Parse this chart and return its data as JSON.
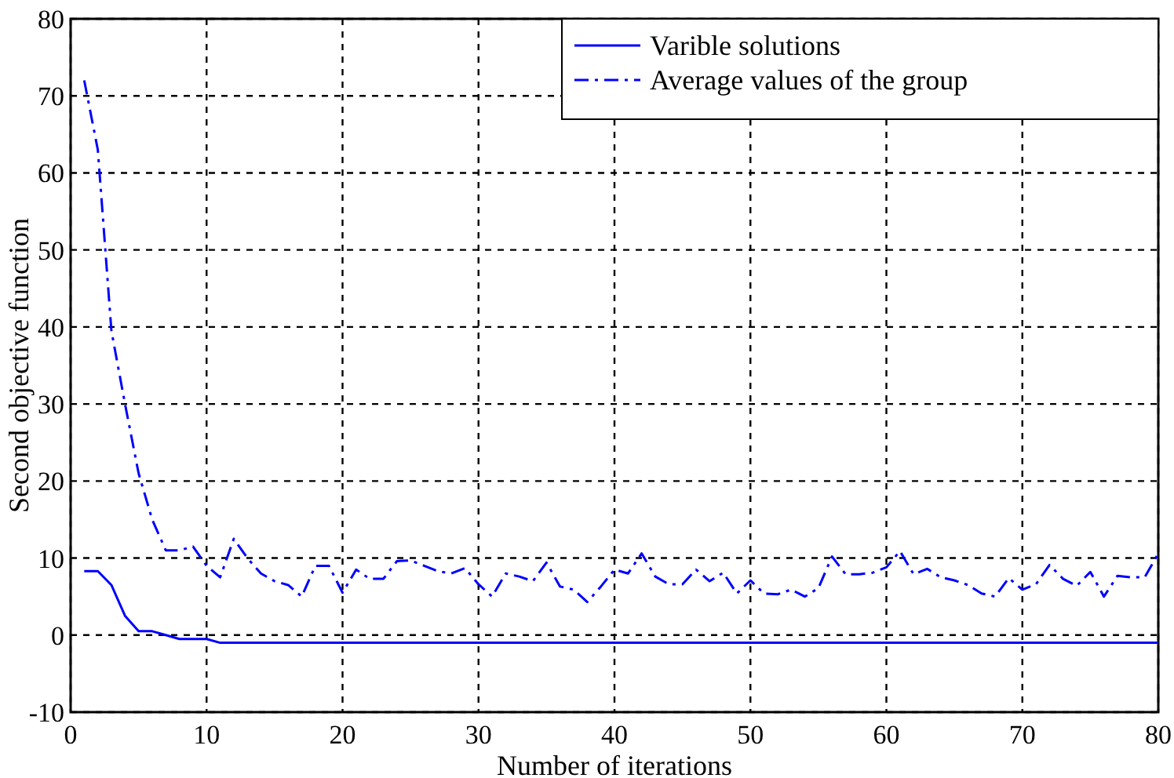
{
  "chart_data": {
    "type": "line",
    "xlabel": "Number of iterations",
    "ylabel": "Second objective function",
    "x": [
      1,
      2,
      3,
      4,
      5,
      6,
      7,
      8,
      9,
      10,
      11,
      12,
      13,
      14,
      15,
      16,
      17,
      18,
      19,
      20,
      21,
      22,
      23,
      24,
      25,
      26,
      27,
      28,
      29,
      30,
      31,
      32,
      33,
      34,
      35,
      36,
      37,
      38,
      39,
      40,
      41,
      42,
      43,
      44,
      45,
      46,
      47,
      48,
      49,
      50,
      51,
      52,
      53,
      54,
      55,
      56,
      57,
      58,
      59,
      60,
      61,
      62,
      63,
      64,
      65,
      66,
      67,
      68,
      69,
      70,
      71,
      72,
      73,
      74,
      75,
      76,
      77,
      78,
      79,
      80
    ],
    "series": [
      {
        "name": "Varible solutions",
        "color": "#0000ff",
        "line_style": "solid",
        "values": [
          8.3,
          8.3,
          6.5,
          2.5,
          0.5,
          0.5,
          0,
          -0.5,
          -0.5,
          -0.5,
          -1,
          -1,
          -1,
          -1,
          -1,
          -1,
          -1,
          -1,
          -1,
          -1,
          -1,
          -1,
          -1,
          -1,
          -1,
          -1,
          -1,
          -1,
          -1,
          -1,
          -1,
          -1,
          -1,
          -1,
          -1,
          -1,
          -1,
          -1,
          -1,
          -1,
          -1,
          -1,
          -1,
          -1,
          -1,
          -1,
          -1,
          -1,
          -1,
          -1,
          -1,
          -1,
          -1,
          -1,
          -1,
          -1,
          -1,
          -1,
          -1,
          -1,
          -1,
          -1,
          -1,
          -1,
          -1,
          -1,
          -1,
          -1,
          -1,
          -1,
          -1,
          -1,
          -1,
          -1,
          -1,
          -1,
          -1,
          -1,
          -1,
          -1
        ]
      },
      {
        "name": "Average values of the group",
        "color": "#0000ff",
        "line_style": "dashed",
        "values": [
          72,
          63,
          39.5,
          30,
          21,
          15,
          11,
          11,
          11.5,
          9,
          7.5,
          12.5,
          10,
          8,
          7,
          6.5,
          5,
          9,
          9,
          5.5,
          8.5,
          7.3,
          7.3,
          9.6,
          9.7,
          9,
          8.3,
          8,
          8.7,
          6.6,
          5,
          8,
          7.6,
          7,
          9.4,
          6.3,
          5.9,
          4.3,
          6.3,
          8.5,
          8,
          10.6,
          7.6,
          6.6,
          6.6,
          8.5,
          7,
          8.1,
          5.4,
          7.1,
          5.4,
          5.3,
          5.9,
          5,
          6.1,
          10.2,
          7.9,
          7.9,
          8.1,
          8.8,
          10.9,
          7.9,
          8.6,
          7.5,
          7.1,
          6.5,
          5.4,
          5,
          7.4,
          5.9,
          6.6,
          9.1,
          7.3,
          6.4,
          8.2,
          5,
          7.7,
          7.5,
          7.5,
          10.6
        ]
      }
    ],
    "xlim": [
      0,
      80
    ],
    "xticks": [
      0,
      10,
      20,
      30,
      40,
      50,
      60,
      70,
      80
    ],
    "ylim": [
      -10,
      80
    ],
    "yticks": [
      -10,
      0,
      10,
      20,
      30,
      40,
      50,
      60,
      70,
      80
    ],
    "grid": true,
    "legend": "top right"
  }
}
